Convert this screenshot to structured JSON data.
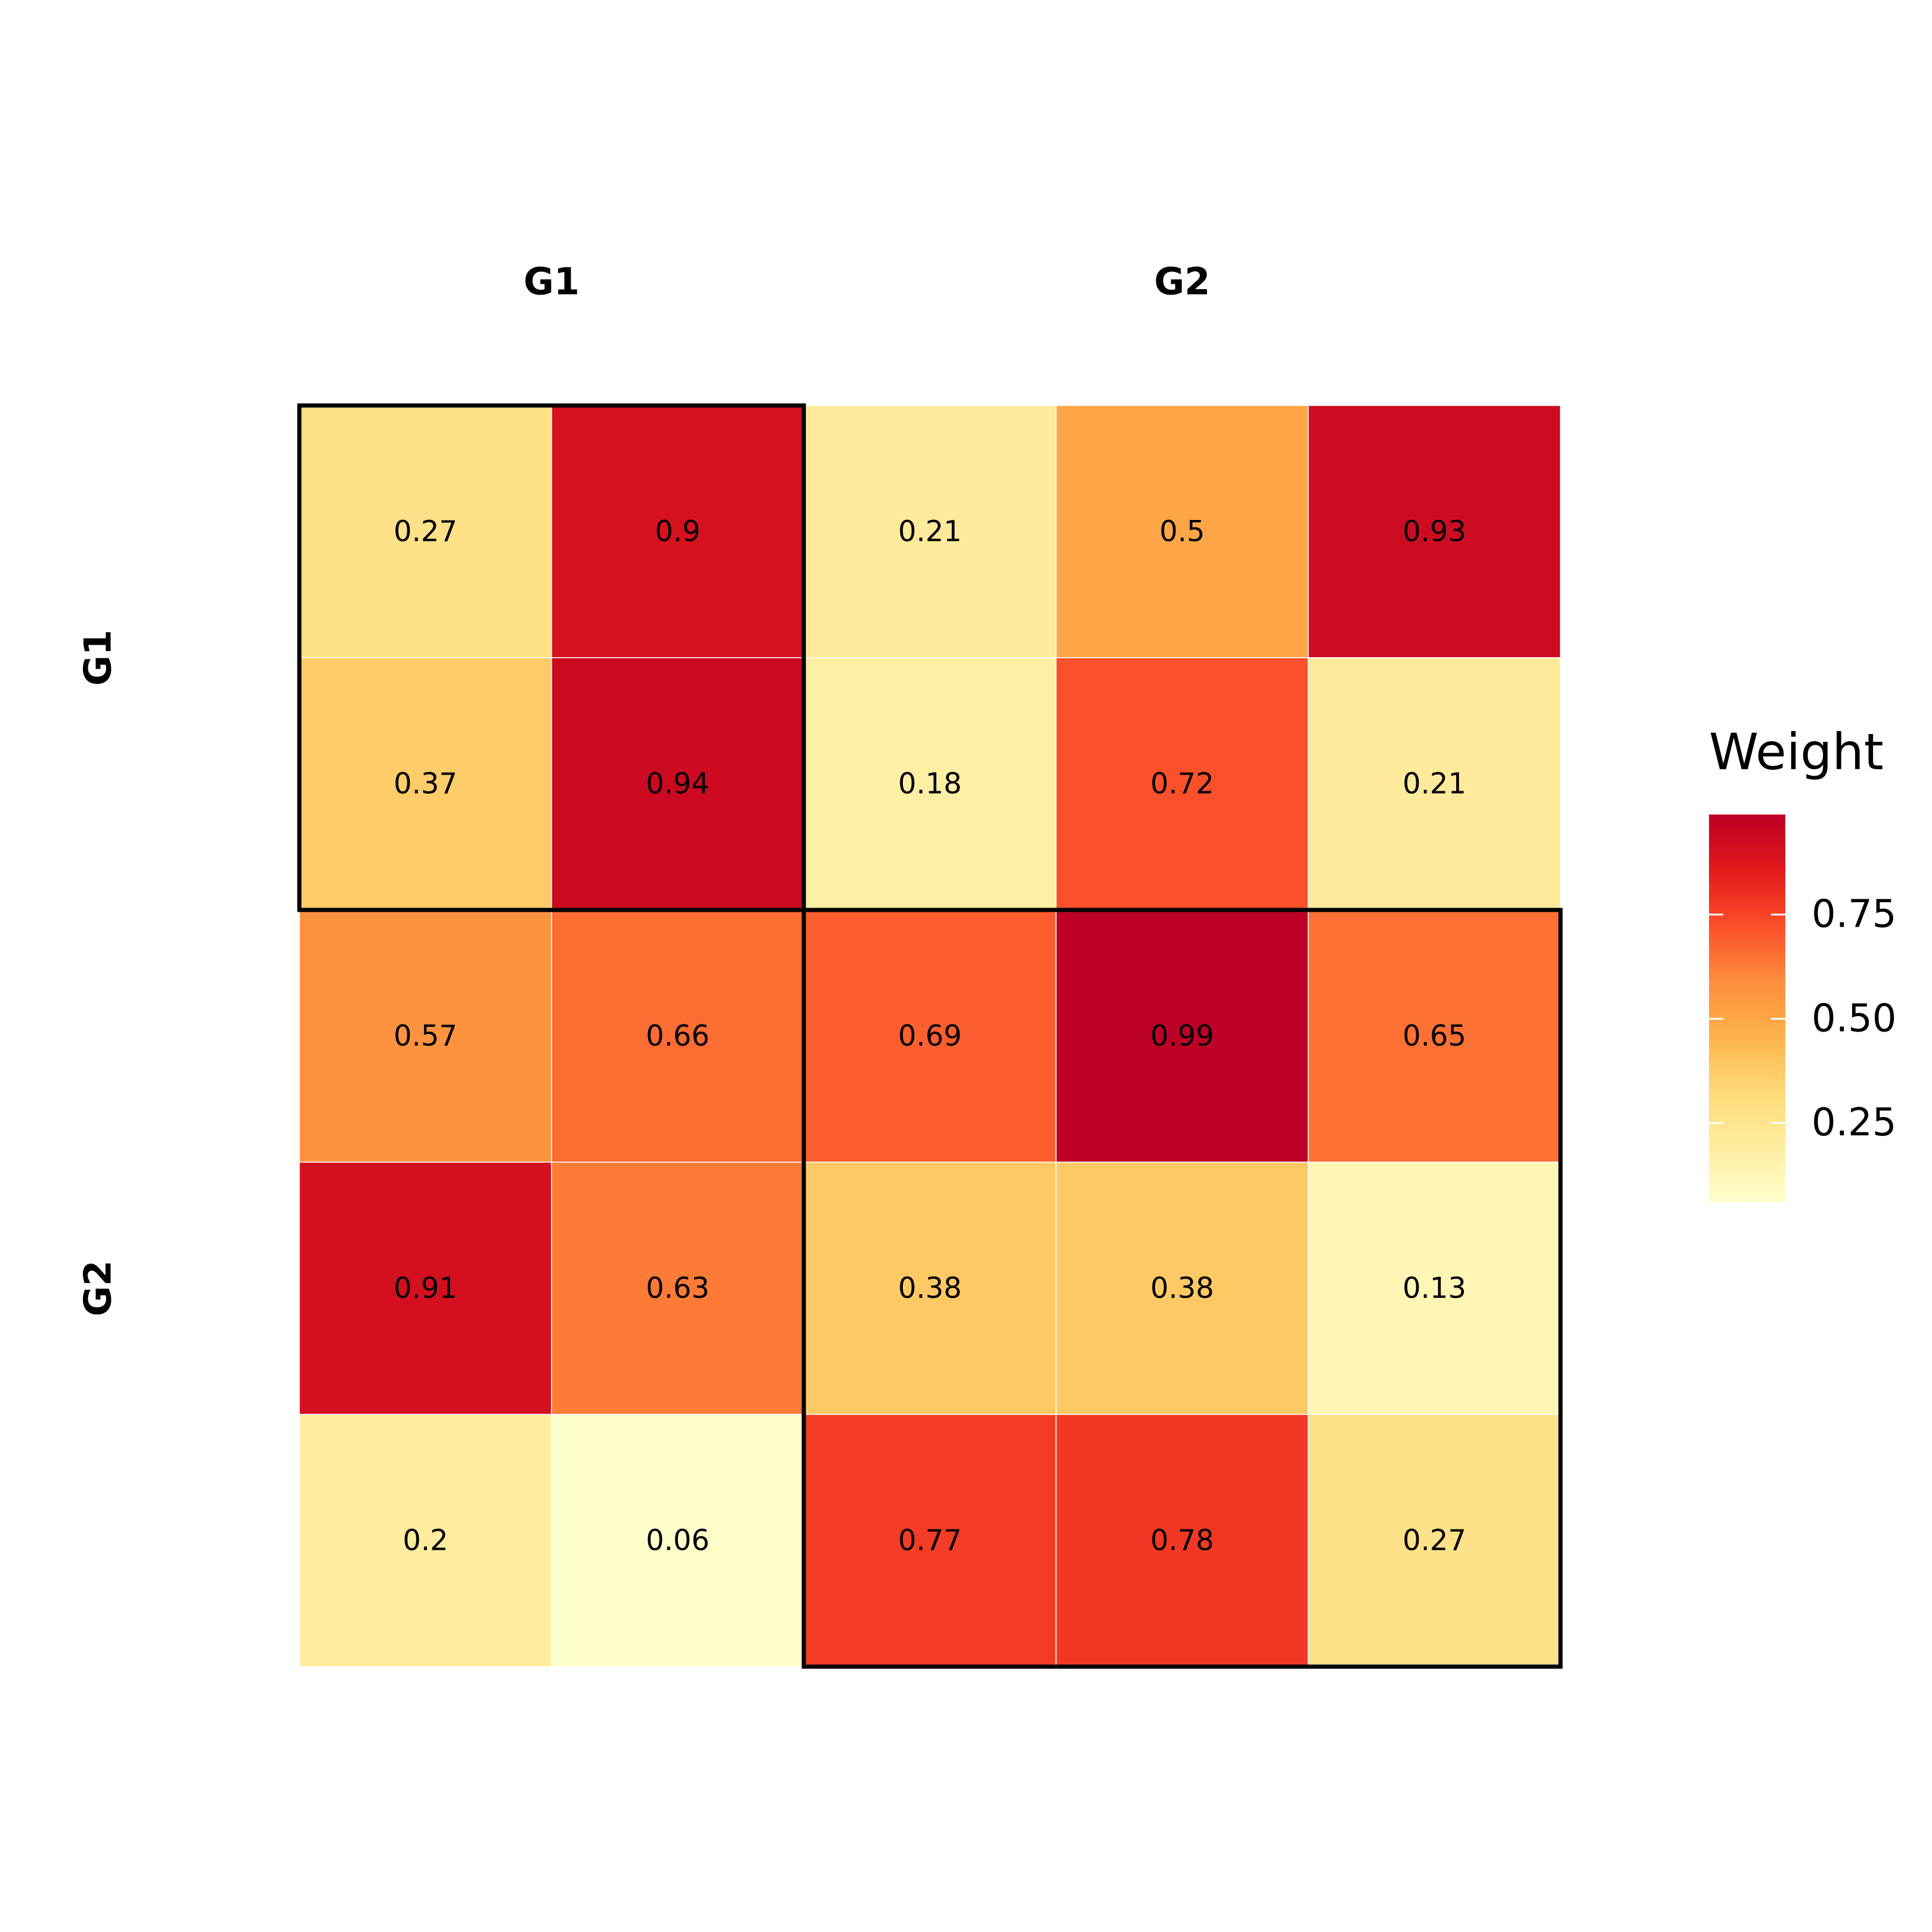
{
  "chart_data": {
    "type": "heatmap",
    "rows": 5,
    "cols": 5,
    "values": [
      [
        0.27,
        0.9,
        0.21,
        0.5,
        0.93
      ],
      [
        0.37,
        0.94,
        0.18,
        0.72,
        0.21
      ],
      [
        0.57,
        0.66,
        0.69,
        0.99,
        0.65
      ],
      [
        0.91,
        0.63,
        0.38,
        0.38,
        0.13
      ],
      [
        0.2,
        0.06,
        0.77,
        0.78,
        0.27
      ]
    ],
    "value_labels": [
      [
        "0.27",
        "0.9",
        "0.21",
        "0.5",
        "0.93"
      ],
      [
        "0.37",
        "0.94",
        "0.18",
        "0.72",
        "0.21"
      ],
      [
        "0.57",
        "0.66",
        "0.69",
        "0.99",
        "0.65"
      ],
      [
        "0.91",
        "0.63",
        "0.38",
        "0.38",
        "0.13"
      ],
      [
        "0.2",
        "0.06",
        "0.77",
        "0.78",
        "0.27"
      ]
    ],
    "column_groups": [
      {
        "label": "G1",
        "cols": [
          0,
          1
        ]
      },
      {
        "label": "G2",
        "cols": [
          2,
          3,
          4
        ]
      }
    ],
    "row_groups": [
      {
        "label": "G1",
        "rows": [
          0,
          1
        ]
      },
      {
        "label": "G2",
        "rows": [
          2,
          3,
          4
        ]
      }
    ],
    "group_outline_blocks": [
      {
        "rows": [
          0,
          1
        ],
        "cols": [
          0,
          1
        ]
      },
      {
        "rows": [
          2,
          3,
          4
        ],
        "cols": [
          2,
          3,
          4
        ]
      }
    ],
    "legend": {
      "title": "Weight",
      "min": 0.06,
      "max": 0.99,
      "ticks": [
        0.25,
        0.5,
        0.75
      ],
      "tick_labels": [
        "0.25",
        "0.50",
        "0.75"
      ],
      "placement": "right"
    },
    "color_scale": {
      "name": "YlOrRd",
      "stops": [
        "#FFFFCC",
        "#FFEDA0",
        "#FED976",
        "#FEB24C",
        "#FD8D3C",
        "#FC4E2A",
        "#E31A1C",
        "#BD0026"
      ]
    }
  }
}
